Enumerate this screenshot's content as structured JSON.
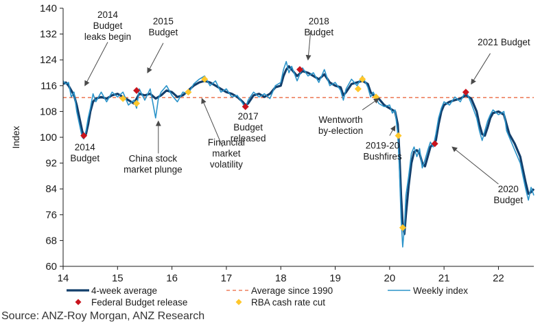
{
  "colors": {
    "four_week": "#123e6b",
    "weekly": "#2a93c9",
    "average": "#ee7f5d",
    "budget_marker": "#c8141d",
    "rba_marker": "#ffc72c",
    "axis": "#1a1a1a"
  },
  "source": "Source: ANZ-Roy Morgan, ANZ Research",
  "chart_data": {
    "type": "line",
    "title": "",
    "xlabel": "",
    "ylabel": "Index",
    "xlim": [
      14,
      22.65
    ],
    "ylim": [
      60,
      140
    ],
    "yticks": [
      60,
      68,
      76,
      84,
      92,
      100,
      108,
      116,
      124,
      132,
      140
    ],
    "xticks": [
      {
        "v": 14,
        "label": "14"
      },
      {
        "v": 15,
        "label": "15"
      },
      {
        "v": 16,
        "label": "16"
      },
      {
        "v": 17,
        "label": "17"
      },
      {
        "v": 18,
        "label": "18"
      },
      {
        "v": 19,
        "label": "19"
      },
      {
        "v": 20,
        "label": "20"
      },
      {
        "v": 21,
        "label": "21"
      },
      {
        "v": 22,
        "label": "22"
      }
    ],
    "grid": false,
    "average": {
      "name": "Average since 1990",
      "value": 112.3
    },
    "series": [
      {
        "name": "4-week average",
        "points": [
          [
            14.0,
            116.5
          ],
          [
            14.05,
            117
          ],
          [
            14.1,
            116
          ],
          [
            14.15,
            114.5
          ],
          [
            14.2,
            113
          ],
          [
            14.25,
            110
          ],
          [
            14.3,
            106
          ],
          [
            14.35,
            102
          ],
          [
            14.38,
            100.5
          ],
          [
            14.42,
            101
          ],
          [
            14.46,
            104
          ],
          [
            14.5,
            108
          ],
          [
            14.55,
            111
          ],
          [
            14.6,
            112
          ],
          [
            14.7,
            112.5
          ],
          [
            14.8,
            112
          ],
          [
            14.9,
            113
          ],
          [
            15.0,
            113.5
          ],
          [
            15.1,
            112.5
          ],
          [
            15.2,
            111.5
          ],
          [
            15.3,
            110.5
          ],
          [
            15.35,
            112
          ],
          [
            15.4,
            113.5
          ],
          [
            15.5,
            113
          ],
          [
            15.6,
            113.5
          ],
          [
            15.7,
            112
          ],
          [
            15.8,
            113
          ],
          [
            15.9,
            114.5
          ],
          [
            16.0,
            114
          ],
          [
            16.1,
            112.5
          ],
          [
            16.2,
            113
          ],
          [
            16.3,
            114.5
          ],
          [
            16.4,
            116
          ],
          [
            16.5,
            117
          ],
          [
            16.6,
            117.5
          ],
          [
            16.7,
            117
          ],
          [
            16.8,
            116
          ],
          [
            16.9,
            115
          ],
          [
            17.0,
            114
          ],
          [
            17.1,
            113.5
          ],
          [
            17.2,
            112.5
          ],
          [
            17.3,
            111
          ],
          [
            17.35,
            110
          ],
          [
            17.4,
            110.5
          ],
          [
            17.5,
            113
          ],
          [
            17.6,
            113.5
          ],
          [
            17.7,
            112.5
          ],
          [
            17.8,
            113.5
          ],
          [
            17.9,
            115.5
          ],
          [
            18.0,
            116
          ],
          [
            18.05,
            119
          ],
          [
            18.1,
            121
          ],
          [
            18.15,
            122
          ],
          [
            18.2,
            121
          ],
          [
            18.3,
            119
          ],
          [
            18.4,
            120.5
          ],
          [
            18.5,
            120
          ],
          [
            18.6,
            119
          ],
          [
            18.7,
            118
          ],
          [
            18.8,
            119.5
          ],
          [
            18.9,
            117
          ],
          [
            19.0,
            116
          ],
          [
            19.1,
            115.5
          ],
          [
            19.15,
            113
          ],
          [
            19.2,
            114
          ],
          [
            19.3,
            116.5
          ],
          [
            19.4,
            117
          ],
          [
            19.5,
            117.5
          ],
          [
            19.6,
            116.5
          ],
          [
            19.65,
            114
          ],
          [
            19.7,
            113
          ],
          [
            19.8,
            112
          ],
          [
            19.9,
            110
          ],
          [
            20.0,
            109
          ],
          [
            20.05,
            108.5
          ],
          [
            20.1,
            108
          ],
          [
            20.15,
            104
          ],
          [
            20.18,
            95
          ],
          [
            20.21,
            82
          ],
          [
            20.24,
            73
          ],
          [
            20.27,
            70
          ],
          [
            20.3,
            76
          ],
          [
            20.35,
            85
          ],
          [
            20.4,
            92
          ],
          [
            20.45,
            95.5
          ],
          [
            20.5,
            96
          ],
          [
            20.55,
            95
          ],
          [
            20.6,
            92
          ],
          [
            20.65,
            91
          ],
          [
            20.7,
            94
          ],
          [
            20.75,
            97
          ],
          [
            20.8,
            98
          ],
          [
            20.85,
            99
          ],
          [
            20.9,
            104
          ],
          [
            20.95,
            108
          ],
          [
            21.0,
            110
          ],
          [
            21.1,
            111
          ],
          [
            21.2,
            111.5
          ],
          [
            21.3,
            112
          ],
          [
            21.4,
            113
          ],
          [
            21.5,
            112
          ],
          [
            21.6,
            108
          ],
          [
            21.65,
            104
          ],
          [
            21.7,
            101
          ],
          [
            21.75,
            100.5
          ],
          [
            21.8,
            103
          ],
          [
            21.85,
            106
          ],
          [
            21.9,
            107.5
          ],
          [
            22.0,
            108
          ],
          [
            22.1,
            107
          ],
          [
            22.15,
            104
          ],
          [
            22.2,
            101
          ],
          [
            22.3,
            98
          ],
          [
            22.4,
            94
          ],
          [
            22.45,
            90
          ],
          [
            22.5,
            86
          ],
          [
            22.55,
            82.5
          ],
          [
            22.6,
            83
          ],
          [
            22.65,
            84
          ]
        ]
      },
      {
        "name": "Weekly index",
        "points": [
          [
            14.0,
            117.5
          ],
          [
            14.05,
            116.5
          ],
          [
            14.1,
            117
          ],
          [
            14.15,
            112.5
          ],
          [
            14.2,
            114
          ],
          [
            14.25,
            108
          ],
          [
            14.3,
            104
          ],
          [
            14.35,
            100
          ],
          [
            14.38,
            99.5
          ],
          [
            14.42,
            102
          ],
          [
            14.46,
            106
          ],
          [
            14.5,
            109
          ],
          [
            14.55,
            113.5
          ],
          [
            14.6,
            111
          ],
          [
            14.7,
            114
          ],
          [
            14.8,
            111
          ],
          [
            14.9,
            114
          ],
          [
            15.0,
            112.5
          ],
          [
            15.1,
            114
          ],
          [
            15.2,
            110
          ],
          [
            15.3,
            111.5
          ],
          [
            15.35,
            109
          ],
          [
            15.4,
            115
          ],
          [
            15.5,
            111.5
          ],
          [
            15.6,
            115
          ],
          [
            15.65,
            110.5
          ],
          [
            15.7,
            106
          ],
          [
            15.75,
            112
          ],
          [
            15.8,
            114
          ],
          [
            15.9,
            116
          ],
          [
            16.0,
            113
          ],
          [
            16.1,
            111
          ],
          [
            16.2,
            114
          ],
          [
            16.3,
            113.5
          ],
          [
            16.4,
            116.5
          ],
          [
            16.5,
            118
          ],
          [
            16.6,
            119
          ],
          [
            16.7,
            116
          ],
          [
            16.8,
            117.5
          ],
          [
            16.9,
            114
          ],
          [
            17.0,
            115
          ],
          [
            17.1,
            112.5
          ],
          [
            17.2,
            113
          ],
          [
            17.3,
            110.5
          ],
          [
            17.35,
            109
          ],
          [
            17.4,
            111.5
          ],
          [
            17.5,
            114
          ],
          [
            17.6,
            112.5
          ],
          [
            17.7,
            113.5
          ],
          [
            17.8,
            112
          ],
          [
            17.9,
            116
          ],
          [
            18.0,
            117
          ],
          [
            18.05,
            121
          ],
          [
            18.1,
            123.5
          ],
          [
            18.15,
            120
          ],
          [
            18.2,
            122
          ],
          [
            18.3,
            117.5
          ],
          [
            18.4,
            121.5
          ],
          [
            18.5,
            119
          ],
          [
            18.6,
            120
          ],
          [
            18.7,
            117
          ],
          [
            18.8,
            121
          ],
          [
            18.9,
            116
          ],
          [
            19.0,
            117
          ],
          [
            19.1,
            114.5
          ],
          [
            19.15,
            111.5
          ],
          [
            19.2,
            115
          ],
          [
            19.3,
            118
          ],
          [
            19.4,
            116
          ],
          [
            19.5,
            119
          ],
          [
            19.6,
            115.5
          ],
          [
            19.65,
            112.5
          ],
          [
            19.7,
            114
          ],
          [
            19.8,
            110.5
          ],
          [
            19.9,
            109.5
          ],
          [
            20.0,
            110
          ],
          [
            20.05,
            107.5
          ],
          [
            20.1,
            108.5
          ],
          [
            20.15,
            101
          ],
          [
            20.18,
            90
          ],
          [
            20.21,
            75
          ],
          [
            20.24,
            66
          ],
          [
            20.27,
            72
          ],
          [
            20.3,
            82
          ],
          [
            20.35,
            88
          ],
          [
            20.4,
            95
          ],
          [
            20.45,
            97
          ],
          [
            20.5,
            94
          ],
          [
            20.55,
            96.5
          ],
          [
            20.6,
            90.5
          ],
          [
            20.65,
            93
          ],
          [
            20.7,
            96
          ],
          [
            20.75,
            98.5
          ],
          [
            20.8,
            97
          ],
          [
            20.85,
            101
          ],
          [
            20.9,
            106
          ],
          [
            20.95,
            109
          ],
          [
            21.0,
            111
          ],
          [
            21.1,
            110
          ],
          [
            21.2,
            112.5
          ],
          [
            21.3,
            111
          ],
          [
            21.4,
            114.5
          ],
          [
            21.5,
            110.5
          ],
          [
            21.6,
            106
          ],
          [
            21.65,
            102
          ],
          [
            21.7,
            99
          ],
          [
            21.75,
            102
          ],
          [
            21.8,
            105
          ],
          [
            21.85,
            107
          ],
          [
            21.9,
            108.5
          ],
          [
            22.0,
            107
          ],
          [
            22.1,
            108
          ],
          [
            22.15,
            102
          ],
          [
            22.2,
            100
          ],
          [
            22.3,
            96
          ],
          [
            22.4,
            92
          ],
          [
            22.45,
            88
          ],
          [
            22.5,
            84
          ],
          [
            22.55,
            80.5
          ],
          [
            22.6,
            84.5
          ],
          [
            22.65,
            82
          ]
        ]
      }
    ],
    "budget_releases": {
      "name": "Federal Budget release",
      "points": [
        [
          14.38,
          100.5
        ],
        [
          15.35,
          114.5
        ],
        [
          17.35,
          109.5
        ],
        [
          18.35,
          121
        ],
        [
          20.83,
          98
        ],
        [
          21.4,
          114
        ]
      ]
    },
    "rba_cuts": {
      "name": "RBA cash rate cut",
      "points": [
        [
          15.1,
          112
        ],
        [
          15.35,
          110.5
        ],
        [
          16.3,
          114
        ],
        [
          16.6,
          118
        ],
        [
          19.42,
          115
        ],
        [
          19.5,
          118
        ],
        [
          19.75,
          112.5
        ],
        [
          20.16,
          100.5
        ],
        [
          20.24,
          72
        ]
      ]
    },
    "annotations": [
      {
        "lines": [
          "2014",
          "Budget",
          "leaks begin"
        ],
        "tx": 14.82,
        "ty": 137,
        "ax": 14.82,
        "ay": 129.5,
        "hx": 14.4,
        "hy": 116
      },
      {
        "lines": [
          "2015",
          "Budget"
        ],
        "tx": 15.84,
        "ty": 135,
        "ax": 15.84,
        "ay": 129.2,
        "hx": 15.55,
        "hy": 120
      },
      {
        "lines": [
          "2018",
          "Budget"
        ],
        "tx": 18.7,
        "ty": 135,
        "ax": 18.55,
        "ay": 133,
        "hx": 18.5,
        "hy": 124
      },
      {
        "lines": [
          "2021 Budget"
        ],
        "tx": 22.1,
        "ty": 128.5,
        "ax": 21.85,
        "ay": 126,
        "hx": 21.5,
        "hy": 116.5
      },
      {
        "lines": [
          "2014",
          "Budget"
        ],
        "tx": 14.4,
        "ty": 96,
        "ax": null,
        "ay": null,
        "hx": null,
        "hy": null
      },
      {
        "lines": [
          "2017",
          "Budget",
          "released"
        ],
        "tx": 17.4,
        "ty": 105.5,
        "ax": null,
        "ay": null,
        "hx": null,
        "hy": null
      },
      {
        "lines": [
          "China stock",
          "market plunge"
        ],
        "tx": 15.65,
        "ty": 92.5,
        "ax": 15.75,
        "ay": 95,
        "hx": 15.75,
        "hy": 105
      },
      {
        "lines": [
          "Financial",
          "market",
          "volatility"
        ],
        "tx": 17.0,
        "ty": 97.5,
        "ax": 16.93,
        "ay": 97,
        "hx": 16.55,
        "hy": 112
      },
      {
        "lines": [
          "Wentworth",
          "by-election"
        ],
        "tx": 19.1,
        "ty": 104.5,
        "ax": 19.5,
        "ay": 108.5,
        "hx": 19.8,
        "hy": 112
      },
      {
        "lines": [
          "2019-20",
          "Bushfires"
        ],
        "tx": 19.87,
        "ty": 96.5,
        "ax": 20.0,
        "ay": 100.5,
        "hx": 20.1,
        "hy": 103.5
      },
      {
        "lines": [
          "2020",
          "Budget"
        ],
        "tx": 22.18,
        "ty": 83,
        "ax": 22.0,
        "ay": 85.5,
        "hx": 21.15,
        "hy": 97
      }
    ]
  }
}
